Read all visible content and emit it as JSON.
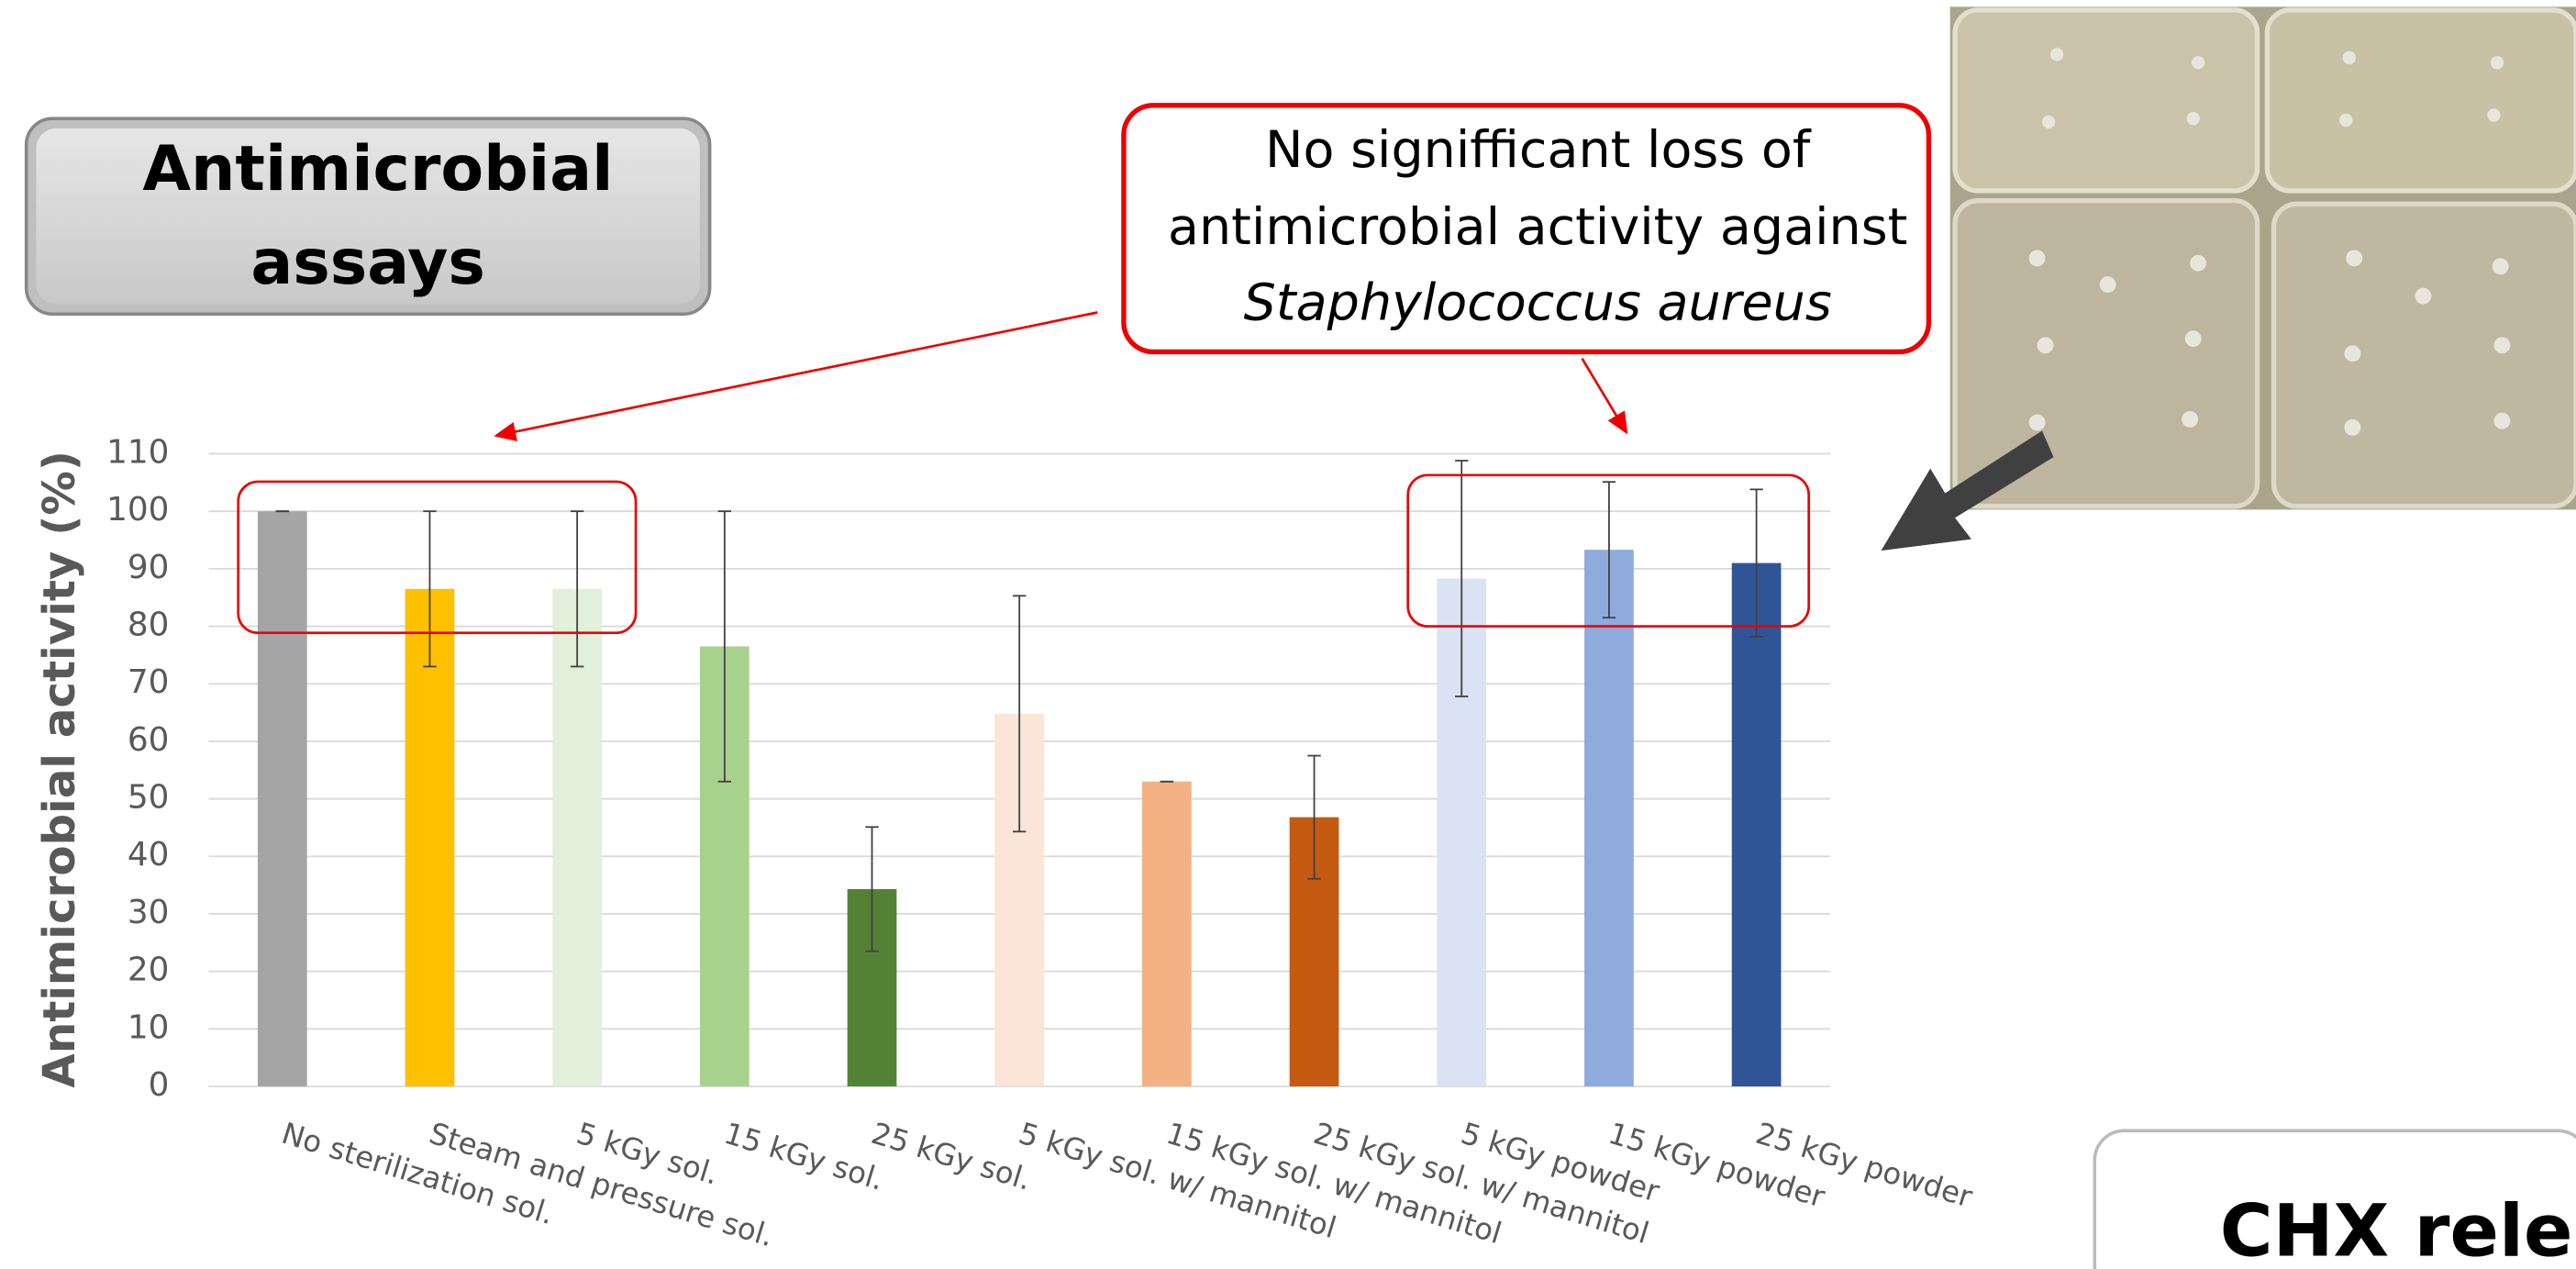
{
  "header": {
    "title_lines": [
      "Antimicrobial",
      "assays"
    ]
  },
  "callout": {
    "lines": [
      "No signifficant loss of",
      "antimicrobial activity against"
    ],
    "organism": "Staphylococcus aureus"
  },
  "next_section": {
    "title": "CHX rele"
  },
  "chart_data": {
    "type": "bar",
    "y_label": "Antimicrobial activity (%)",
    "categories": [
      "No sterilization sol.",
      "Steam and pressure sol.",
      "5 kGy sol.",
      "15 kGy sol.",
      "25 kGy sol.",
      "5 kGy sol. w/ mannitol",
      "15 kGy sol. w/ mannitol",
      "25 kGy sol. w/ mannitol",
      "5 kGy powder",
      "15 kGy powder",
      "25 kGy powder"
    ],
    "values": [
      100,
      86.5,
      86.5,
      76.5,
      34.3,
      64.8,
      53,
      46.8,
      88.3,
      93.3,
      91
    ],
    "errors": [
      0,
      13.5,
      13.5,
      23.5,
      10.8,
      20.5,
      0,
      10.7,
      20.5,
      11.8,
      12.8
    ],
    "colors": [
      "#a5a5a5",
      "#ffc000",
      "#e2efda",
      "#a9d18e",
      "#548235",
      "#fbe5d6",
      "#f4b183",
      "#c55a11",
      "#dae3f3",
      "#8faadc",
      "#2f5597"
    ],
    "ylim": [
      0,
      110
    ],
    "yticks": [
      0,
      10,
      20,
      30,
      40,
      50,
      60,
      70,
      80,
      90,
      100,
      110
    ],
    "grid": true
  }
}
